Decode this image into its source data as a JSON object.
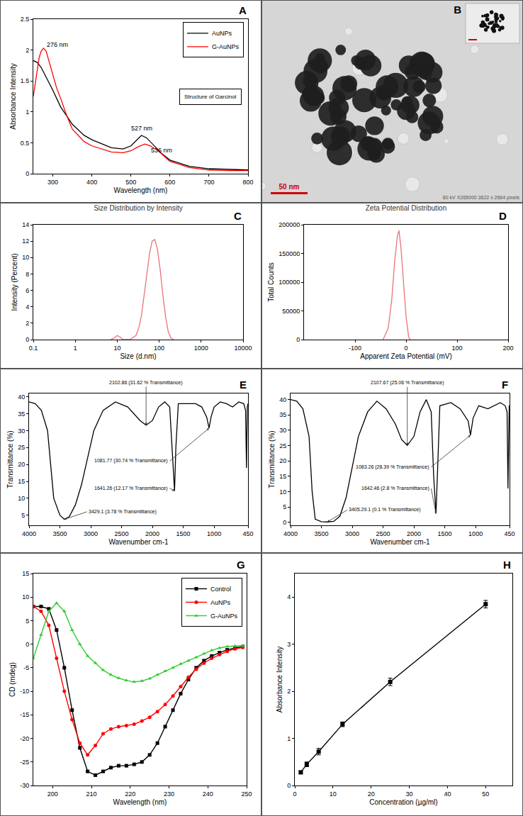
{
  "chart_data": [
    {
      "panel": "A",
      "type": "line",
      "x_label": "Wavelength (nm)",
      "y_label": "Absorbance Intensity",
      "xlim": [
        250,
        800
      ],
      "xticks": [
        300,
        400,
        500,
        600,
        700,
        800
      ],
      "ylim": [
        0,
        2.5
      ],
      "yticks": [
        0,
        0.5,
        1.0,
        1.5,
        2.0,
        2.5
      ],
      "grid": false,
      "legend": "top right",
      "inset": "Structure of Garcinol",
      "series": [
        {
          "name": "AuNPs",
          "color": "#000000",
          "marker": "none",
          "line_style": "solid",
          "x": [
            250,
            260,
            270,
            280,
            290,
            300,
            320,
            350,
            380,
            400,
            450,
            480,
            500,
            515,
            527,
            540,
            560,
            580,
            600,
            650,
            700,
            750,
            800
          ],
          "values": [
            1.83,
            1.8,
            1.72,
            1.6,
            1.48,
            1.35,
            1.08,
            0.8,
            0.62,
            0.55,
            0.42,
            0.4,
            0.45,
            0.55,
            0.62,
            0.58,
            0.45,
            0.32,
            0.22,
            0.12,
            0.08,
            0.07,
            0.06
          ]
        },
        {
          "name": "G-AuNPs",
          "color": "#ff0000",
          "marker": "none",
          "line_style": "solid",
          "x": [
            250,
            258,
            265,
            270,
            276,
            283,
            290,
            300,
            310,
            320,
            335,
            350,
            380,
            400,
            450,
            480,
            500,
            520,
            536,
            550,
            570,
            600,
            650,
            700,
            750,
            800
          ],
          "values": [
            1.25,
            1.6,
            1.88,
            1.98,
            2.03,
            1.98,
            1.82,
            1.6,
            1.38,
            1.22,
            0.95,
            0.72,
            0.52,
            0.45,
            0.35,
            0.34,
            0.37,
            0.44,
            0.48,
            0.45,
            0.37,
            0.2,
            0.1,
            0.06,
            0.05,
            0.05
          ]
        }
      ],
      "annotations": [
        {
          "text": "276 nm",
          "x": 276,
          "y": 2.03
        },
        {
          "text": "527 nm",
          "x": 527,
          "y": 0.62
        },
        {
          "text": "536 nm",
          "x": 536,
          "y": 0.48
        }
      ]
    },
    {
      "panel": "C",
      "type": "line",
      "title": "Size Distribution by Intensity",
      "x_label": "Size (d.nm)",
      "y_label": "Intensity (Percent)",
      "log": "x",
      "xlim": [
        0.1,
        10000
      ],
      "xticks": [
        0.1,
        1,
        10,
        100,
        1000,
        10000
      ],
      "ylim": [
        0,
        14
      ],
      "yticks": [
        0,
        2,
        4,
        6,
        8,
        10,
        12,
        14
      ],
      "grid": false,
      "series": [
        {
          "color": "#e8737a",
          "marker": "none",
          "line_style": "solid",
          "x": [
            7,
            8.5,
            10,
            11.7,
            13.5,
            20,
            28,
            33,
            38,
            44,
            51,
            59,
            68,
            79,
            91,
            106,
            122,
            142,
            164,
            190,
            220
          ],
          "values": [
            0,
            0.2,
            0.5,
            0.3,
            0,
            0,
            0.5,
            1.5,
            3,
            5.5,
            8,
            10.5,
            12,
            12.2,
            11,
            8.5,
            5.5,
            2.8,
            1,
            0.2,
            0
          ]
        }
      ]
    },
    {
      "panel": "D",
      "type": "line",
      "title": "Zeta Potential Distribution",
      "x_label": "Apparent Zeta Potential (mV)",
      "y_label": "Total Counts",
      "xlim": [
        -200,
        200
      ],
      "xticks": [
        -100,
        0,
        100,
        200
      ],
      "ylim": [
        0,
        200000
      ],
      "yticks": [
        0,
        50000,
        100000,
        150000,
        200000
      ],
      "grid": false,
      "series": [
        {
          "color": "#e8737a",
          "marker": "none",
          "line_style": "solid",
          "x": [
            -45,
            -35,
            -28,
            -22,
            -17,
            -14,
            -10,
            -5,
            0,
            5,
            8
          ],
          "values": [
            0,
            20000,
            70000,
            140000,
            180000,
            190000,
            160000,
            100000,
            40000,
            5000,
            0
          ]
        }
      ]
    },
    {
      "panel": "E",
      "type": "line",
      "x_label": "Wavenumber cm-1",
      "y_label": "Transmittance (%)",
      "xlim": [
        4000,
        450
      ],
      "xticks": [
        4000,
        3500,
        3000,
        2500,
        2000,
        1500,
        1000,
        450
      ],
      "ylim": [
        2,
        41
      ],
      "yticks": [
        5,
        10,
        15,
        20,
        25,
        30,
        35,
        40
      ],
      "grid": false,
      "series": [
        {
          "color": "#000000",
          "marker": "none",
          "line_style": "solid",
          "x": [
            4000,
            3900,
            3800,
            3700,
            3650,
            3600,
            3500,
            3429.1,
            3350,
            3250,
            3150,
            3050,
            2950,
            2800,
            2600,
            2400,
            2200,
            2102.86,
            2000,
            1900,
            1800,
            1720,
            1680,
            1641.26,
            1620,
            1580,
            1450,
            1300,
            1200,
            1120,
            1081.77,
            1050,
            1000,
            900,
            800,
            700,
            600,
            520,
            490,
            475,
            462,
            455,
            450
          ],
          "values": [
            38.5,
            38,
            36,
            30,
            20,
            10,
            5,
            3.78,
            4.5,
            8,
            14,
            22,
            30,
            36,
            38.5,
            37,
            33,
            31.62,
            33,
            37,
            38.5,
            37,
            25,
            12.17,
            25,
            38,
            38,
            38,
            37,
            34,
            30.74,
            34,
            37,
            38.5,
            38,
            37,
            38.5,
            38,
            36,
            19,
            37,
            38,
            38
          ]
        }
      ],
      "annotations": [
        {
          "text": "1081.77 (30.74 % Transmittance)",
          "x": 1081.77,
          "y": 30.74
        },
        {
          "text": "2102.86 (31.62 % Transmittance)",
          "x": 2102.86,
          "y": 31.62
        },
        {
          "text": "1641.26 (12.17 % Transmittance)",
          "x": 1641.26,
          "y": 12.17
        },
        {
          "text": "3429.1 (3.78 % Transmittance)",
          "x": 3429.1,
          "y": 3.78
        }
      ]
    },
    {
      "panel": "F",
      "type": "line",
      "x_label": "Wavenumber cm-1",
      "y_label": "Transmittance (%)",
      "xlim": [
        4000,
        450
      ],
      "xticks": [
        4000,
        3500,
        3000,
        2500,
        2000,
        1500,
        1000,
        450
      ],
      "ylim": [
        -1,
        42
      ],
      "yticks": [
        0,
        5,
        10,
        15,
        20,
        25,
        30,
        35,
        40
      ],
      "grid": false,
      "series": [
        {
          "color": "#000000",
          "marker": "none",
          "line_style": "solid",
          "x": [
            4000,
            3900,
            3800,
            3700,
            3650,
            3600,
            3500,
            3405.29,
            3300,
            3200,
            3100,
            3000,
            2900,
            2750,
            2600,
            2450,
            2300,
            2200,
            2107.67,
            2000,
            1900,
            1800,
            1720,
            1680,
            1642.46,
            1620,
            1580,
            1400,
            1250,
            1120,
            1083.26,
            1040,
            950,
            800,
            700,
            600,
            520,
            490,
            475,
            462,
            455,
            450
          ],
          "values": [
            40,
            39.5,
            37,
            28,
            10,
            1,
            0.2,
            0.1,
            0.3,
            2,
            8,
            18,
            28,
            36,
            39.5,
            37,
            32,
            27,
            25.06,
            28,
            36,
            40,
            36,
            15,
            2.8,
            15,
            38,
            39,
            37,
            33,
            28.39,
            34,
            38,
            37,
            38,
            39,
            38,
            36,
            11,
            38,
            38,
            38
          ]
        }
      ],
      "annotations": [
        {
          "text": "2107.67 (25.06 % Transmittance)",
          "x": 2107.67,
          "y": 25.06
        },
        {
          "text": "1083.26 (28.39 % Transmittance)",
          "x": 1083.26,
          "y": 28.39
        },
        {
          "text": "3405.29.1 (0.1 % Transmittance)",
          "x": 3405.29,
          "y": 0.1
        },
        {
          "text": "1642.46 (2.8 % Transmittance)",
          "x": 1642.46,
          "y": 2.8
        }
      ]
    },
    {
      "panel": "G",
      "type": "line",
      "x_label": "Wavelength (nm)",
      "y_label": "CD (mdeg)",
      "xlim": [
        195,
        250
      ],
      "xticks": [
        200,
        210,
        220,
        230,
        240,
        250
      ],
      "ylim": [
        -30,
        15
      ],
      "yticks": [
        -30,
        -25,
        -20,
        -15,
        -10,
        -5,
        0,
        5,
        10,
        15
      ],
      "grid": false,
      "legend": "top right",
      "x": [
        195,
        197,
        199,
        201,
        203,
        205,
        207,
        209,
        211,
        213,
        215,
        217,
        219,
        221,
        223,
        225,
        227,
        229,
        231,
        233,
        235,
        237,
        239,
        241,
        243,
        245,
        247,
        249
      ],
      "series": [
        {
          "name": "Control",
          "color": "#000000",
          "marker": "square",
          "line_style": "solid",
          "values": [
            8,
            8,
            7.5,
            3,
            -5,
            -14,
            -22,
            -27,
            -27.8,
            -27,
            -26.2,
            -25.8,
            -25.8,
            -25.5,
            -25,
            -23.5,
            -21,
            -17.5,
            -14,
            -10.5,
            -7.5,
            -5,
            -3.5,
            -2.5,
            -1.8,
            -1.2,
            -0.8,
            -0.5
          ]
        },
        {
          "name": "AuNPs",
          "color": "#ff0000",
          "marker": "circle",
          "line_style": "solid",
          "values": [
            8,
            7,
            4,
            -3,
            -10,
            -16,
            -21,
            -23.5,
            -21.5,
            -19,
            -18,
            -17.5,
            -17.3,
            -17,
            -16.3,
            -15.5,
            -14.3,
            -12.8,
            -11,
            -9,
            -7,
            -5.3,
            -4,
            -3,
            -2.2,
            -1.5,
            -1,
            -0.7
          ]
        },
        {
          "name": "G-AuNPs",
          "color": "#33cc33",
          "marker": "triangle-up",
          "line_style": "solid",
          "values": [
            -3,
            2,
            7,
            8.7,
            7,
            3,
            0,
            -2.5,
            -4,
            -5.5,
            -6.5,
            -7.2,
            -7.7,
            -8,
            -7.8,
            -7.3,
            -6.5,
            -5.7,
            -5,
            -4.2,
            -3.5,
            -2.8,
            -2,
            -1.3,
            -0.8,
            -0.5,
            -0.4,
            -0.3
          ]
        }
      ]
    },
    {
      "panel": "H",
      "type": "line",
      "x_label": "Concentration (µg/ml)",
      "y_label": "Absorbance Intensity",
      "xlim": [
        0,
        57
      ],
      "xticks": [
        0,
        10,
        20,
        30,
        40,
        50
      ],
      "ylim": [
        0,
        4.5
      ],
      "yticks": [
        0,
        1,
        2,
        3,
        4
      ],
      "grid": false,
      "series": [
        {
          "color": "#000000",
          "marker": "square",
          "line_style": "solid",
          "x": [
            1.5625,
            3.125,
            6.25,
            12.5,
            25,
            50
          ],
          "values": [
            0.28,
            0.45,
            0.72,
            1.3,
            2.2,
            3.85
          ],
          "errors": [
            0.03,
            0.05,
            0.07,
            0.05,
            0.08,
            0.08
          ]
        }
      ]
    }
  ],
  "micrograph": {
    "panel": "B",
    "scale_bar": "50 nm",
    "caption": "80 kV X265000 3622 x 2664 pixels"
  }
}
